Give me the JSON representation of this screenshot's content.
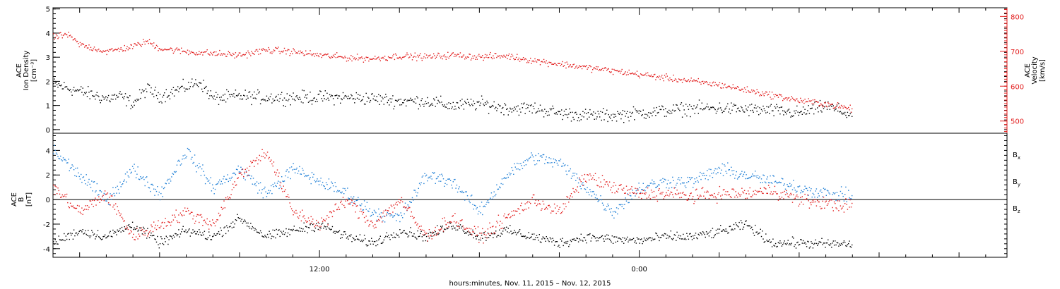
{
  "chart_data": [
    {
      "panel": "top",
      "type": "scatter",
      "ylabel_left": [
        "ACE",
        "Ion Density",
        "[cm⁻³]"
      ],
      "ylabel_right": [
        "ACE",
        "Velocity",
        "[km/s]"
      ],
      "yticks_left": [
        "0",
        "1",
        "2",
        "3",
        "4",
        "5"
      ],
      "ylim_left": [
        -0.15,
        5.05
      ],
      "yticks_right": [
        "500",
        "600",
        "700",
        "800"
      ],
      "ylim_right": [
        465,
        825
      ],
      "right_axis_color": "#e21b1b",
      "series": [
        {
          "name": "Ion Density",
          "axis": "left",
          "color": "#000000",
          "points": [
            [
              0.0,
              1.9
            ],
            [
              1.0,
              1.6
            ],
            [
              2.0,
              1.3
            ],
            [
              2.5,
              1.4
            ],
            [
              3.0,
              1.1
            ],
            [
              3.5,
              1.7
            ],
            [
              4.0,
              1.4
            ],
            [
              5.0,
              1.8
            ],
            [
              5.5,
              2.0
            ],
            [
              6.0,
              1.3
            ],
            [
              7.0,
              1.4
            ],
            [
              8.0,
              1.35
            ],
            [
              9.0,
              1.35
            ],
            [
              10.0,
              1.35
            ],
            [
              11.0,
              1.35
            ],
            [
              12.0,
              1.3
            ],
            [
              13.0,
              1.2
            ],
            [
              14.0,
              1.2
            ],
            [
              15.0,
              1.0
            ],
            [
              16.0,
              1.1
            ],
            [
              17.0,
              0.9
            ],
            [
              18.0,
              0.9
            ],
            [
              19.0,
              0.7
            ],
            [
              20.0,
              0.6
            ],
            [
              21.0,
              0.6
            ],
            [
              22.0,
              0.7
            ],
            [
              23.0,
              0.8
            ],
            [
              24.0,
              0.9
            ],
            [
              25.0,
              0.9
            ],
            [
              26.0,
              0.85
            ],
            [
              27.0,
              0.8
            ],
            [
              28.0,
              0.7
            ],
            [
              29.0,
              1.0
            ],
            [
              30.0,
              0.6
            ]
          ],
          "spread": 0.4
        },
        {
          "name": "Velocity",
          "axis": "right",
          "color": "#e21b1b",
          "points": [
            [
              0.0,
              740
            ],
            [
              0.5,
              750
            ],
            [
              1.0,
              720
            ],
            [
              2.0,
              700
            ],
            [
              3.0,
              715
            ],
            [
              3.5,
              730
            ],
            [
              4.0,
              710
            ],
            [
              5.0,
              700
            ],
            [
              6.0,
              695
            ],
            [
              7.0,
              690
            ],
            [
              8.0,
              705
            ],
            [
              9.0,
              700
            ],
            [
              10.0,
              690
            ],
            [
              11.0,
              683
            ],
            [
              12.0,
              680
            ],
            [
              13.0,
              688
            ],
            [
              14.0,
              685
            ],
            [
              15.0,
              690
            ],
            [
              16.0,
              685
            ],
            [
              17.0,
              688
            ],
            [
              18.0,
              675
            ],
            [
              19.0,
              665
            ],
            [
              20.0,
              655
            ],
            [
              21.0,
              645
            ],
            [
              22.0,
              635
            ],
            [
              23.0,
              625
            ],
            [
              24.0,
              615
            ],
            [
              25.0,
              605
            ],
            [
              26.0,
              590
            ],
            [
              27.0,
              575
            ],
            [
              28.0,
              560
            ],
            [
              29.0,
              550
            ],
            [
              30.0,
              535
            ]
          ],
          "spread": 14
        }
      ]
    },
    {
      "panel": "bottom",
      "type": "scatter",
      "ylabel_left": [
        "ACE",
        "B",
        "[nT]"
      ],
      "yticks_left": [
        "-4",
        "-2",
        "0",
        "2",
        "4"
      ],
      "ylim_left": [
        -4.7,
        5.4
      ],
      "zero_line": true,
      "xticks": [
        "12:00",
        "0:00"
      ],
      "xlabel": "hours:minutes, Nov. 11, 2015 – Nov. 12, 2015",
      "xlim": [
        0,
        35.8
      ],
      "legend": "right",
      "series": [
        {
          "name": "B",
          "sub": "x",
          "color": "#000000",
          "points": [
            [
              0.0,
              -3.5
            ],
            [
              1.0,
              -2.5
            ],
            [
              2.0,
              -3.0
            ],
            [
              3.0,
              -2.0
            ],
            [
              4.0,
              -3.5
            ],
            [
              5.0,
              -2.5
            ],
            [
              6.0,
              -3.0
            ],
            [
              7.0,
              -1.5
            ],
            [
              8.0,
              -3.0
            ],
            [
              9.0,
              -2.5
            ],
            [
              10.0,
              -2.0
            ],
            [
              11.0,
              -3.0
            ],
            [
              12.0,
              -3.5
            ],
            [
              13.0,
              -2.5
            ],
            [
              14.0,
              -3.0
            ],
            [
              15.0,
              -2.0
            ],
            [
              16.0,
              -3.0
            ],
            [
              17.0,
              -2.5
            ],
            [
              18.0,
              -3.0
            ],
            [
              19.0,
              -3.5
            ],
            [
              20.0,
              -3.0
            ],
            [
              21.0,
              -3.2
            ],
            [
              22.0,
              -3.3
            ],
            [
              23.0,
              -3.0
            ],
            [
              24.0,
              -3.0
            ],
            [
              25.0,
              -2.6
            ],
            [
              26.0,
              -2.0
            ],
            [
              27.0,
              -3.5
            ],
            [
              28.0,
              -3.5
            ],
            [
              29.0,
              -3.6
            ],
            [
              30.0,
              -3.6
            ]
          ],
          "spread": 0.6
        },
        {
          "name": "B",
          "sub": "y",
          "color": "#1f7fd6",
          "points": [
            [
              0.0,
              4.0
            ],
            [
              1.0,
              2.0
            ],
            [
              2.0,
              0.0
            ],
            [
              3.0,
              2.5
            ],
            [
              4.0,
              0.5
            ],
            [
              5.0,
              4.0
            ],
            [
              6.0,
              1.0
            ],
            [
              7.0,
              2.5
            ],
            [
              8.0,
              0.5
            ],
            [
              9.0,
              2.5
            ],
            [
              10.0,
              1.5
            ],
            [
              11.0,
              0.5
            ],
            [
              12.0,
              -1.0
            ],
            [
              13.0,
              -1.5
            ],
            [
              14.0,
              2.0
            ],
            [
              15.0,
              1.5
            ],
            [
              16.0,
              -1.0
            ],
            [
              17.0,
              2.0
            ],
            [
              18.0,
              3.5
            ],
            [
              19.0,
              3.0
            ],
            [
              20.0,
              1.0
            ],
            [
              21.0,
              -1.0
            ],
            [
              22.0,
              1.0
            ],
            [
              23.0,
              1.5
            ],
            [
              24.0,
              1.5
            ],
            [
              25.0,
              2.5
            ],
            [
              26.0,
              2.0
            ],
            [
              27.0,
              1.5
            ],
            [
              28.0,
              1.0
            ],
            [
              29.0,
              0.5
            ],
            [
              30.0,
              0.3
            ]
          ],
          "spread": 0.8
        },
        {
          "name": "B",
          "sub": "z",
          "color": "#e21b1b",
          "points": [
            [
              0.0,
              1.0
            ],
            [
              1.0,
              -1.0
            ],
            [
              2.0,
              0.5
            ],
            [
              3.0,
              -3.0
            ],
            [
              4.0,
              -2.0
            ],
            [
              5.0,
              -1.0
            ],
            [
              6.0,
              -2.0
            ],
            [
              7.0,
              2.0
            ],
            [
              8.0,
              4.0
            ],
            [
              9.0,
              -1.0
            ],
            [
              10.0,
              -2.0
            ],
            [
              11.0,
              0.0
            ],
            [
              12.0,
              -2.0
            ],
            [
              13.0,
              0.0
            ],
            [
              14.0,
              -3.0
            ],
            [
              15.0,
              -1.5
            ],
            [
              16.0,
              -3.0
            ],
            [
              17.0,
              -1.5
            ],
            [
              18.0,
              0.0
            ],
            [
              19.0,
              -1.0
            ],
            [
              20.0,
              2.0
            ],
            [
              21.0,
              1.0
            ],
            [
              22.0,
              0.5
            ],
            [
              23.0,
              0.5
            ],
            [
              24.0,
              0.3
            ],
            [
              25.0,
              0.5
            ],
            [
              26.0,
              0.5
            ],
            [
              27.0,
              0.8
            ],
            [
              28.0,
              0.0
            ],
            [
              29.0,
              -0.3
            ],
            [
              30.0,
              -0.5
            ]
          ],
          "spread": 0.8
        }
      ]
    }
  ]
}
